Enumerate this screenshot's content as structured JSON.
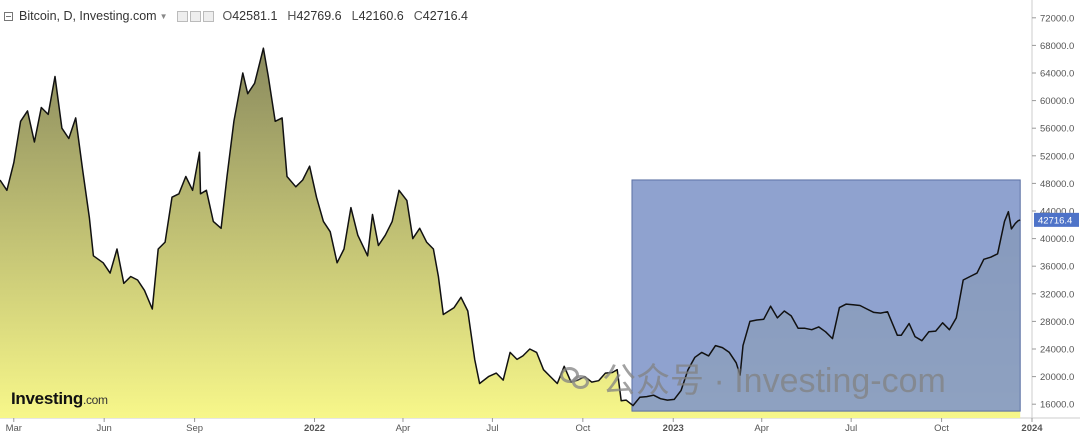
{
  "header": {
    "symbol": "Bitcoin, D, Investing.com",
    "open": "42581.1",
    "high": "42769.6",
    "low": "42160.6",
    "close": "42716.4",
    "open_label": "O",
    "high_label": "H",
    "low_label": "L",
    "close_label": "C"
  },
  "logo": {
    "brand": "Investing",
    "domain": ".com"
  },
  "watermark": "公众号 · Investing-com",
  "colors": {
    "line": "#111111",
    "fill_top": "#8a8a5e",
    "fill_bottom": "#f7f78a",
    "highlight": "#7f95c8",
    "price_tag": "#4e73c8",
    "grid": "#e6e6e6",
    "axis_text": "#555555"
  },
  "chart_data": {
    "type": "area",
    "title": "Bitcoin, D, Investing.com",
    "last_value": "42716.4",
    "y_ticks": [
      "16000.0",
      "20000.0",
      "24000.0",
      "28000.0",
      "32000.0",
      "36000.0",
      "40000.0",
      "44000.0",
      "48000.0",
      "52000.0",
      "56000.0",
      "60000.0",
      "64000.0",
      "68000.0",
      "72000.0"
    ],
    "ylim": [
      14000,
      74000
    ],
    "x_ticks": [
      {
        "label": "Mar",
        "date": "2021-03-01",
        "bold": false
      },
      {
        "label": "Jun",
        "date": "2021-06-01",
        "bold": false
      },
      {
        "label": "Sep",
        "date": "2021-09-01",
        "bold": false
      },
      {
        "label": "2022",
        "date": "2022-01-01",
        "bold": true
      },
      {
        "label": "Apr",
        "date": "2022-04-01",
        "bold": false
      },
      {
        "label": "Jul",
        "date": "2022-07-01",
        "bold": false
      },
      {
        "label": "Oct",
        "date": "2022-10-01",
        "bold": false
      },
      {
        "label": "2023",
        "date": "2023-01-01",
        "bold": true
      },
      {
        "label": "Apr",
        "date": "2023-04-01",
        "bold": false
      },
      {
        "label": "Jul",
        "date": "2023-07-01",
        "bold": false
      },
      {
        "label": "Oct",
        "date": "2023-10-01",
        "bold": false
      },
      {
        "label": "2024",
        "date": "2024-01-01",
        "bold": true
      }
    ],
    "xlim": [
      "2021-02-15",
      "2024-01-01"
    ],
    "highlight_range": {
      "x_start": "2022-11-20",
      "x_end": "2023-12-20",
      "y_top": 48500,
      "y_bottom": 15000
    },
    "series": [
      {
        "points": [
          [
            "2021-02-15",
            48500
          ],
          [
            "2021-02-22",
            47000
          ],
          [
            "2021-03-01",
            51000
          ],
          [
            "2021-03-08",
            57000
          ],
          [
            "2021-03-15",
            58500
          ],
          [
            "2021-03-22",
            54000
          ],
          [
            "2021-03-29",
            59000
          ],
          [
            "2021-04-05",
            58000
          ],
          [
            "2021-04-12",
            63500
          ],
          [
            "2021-04-19",
            56000
          ],
          [
            "2021-04-26",
            54500
          ],
          [
            "2021-05-03",
            57500
          ],
          [
            "2021-05-10",
            50000
          ],
          [
            "2021-05-17",
            43000
          ],
          [
            "2021-05-21",
            37500
          ],
          [
            "2021-05-31",
            36500
          ],
          [
            "2021-06-07",
            35000
          ],
          [
            "2021-06-14",
            38500
          ],
          [
            "2021-06-21",
            33500
          ],
          [
            "2021-06-28",
            34500
          ],
          [
            "2021-07-05",
            34000
          ],
          [
            "2021-07-12",
            32500
          ],
          [
            "2021-07-20",
            29800
          ],
          [
            "2021-07-26",
            38500
          ],
          [
            "2021-08-02",
            39500
          ],
          [
            "2021-08-09",
            46000
          ],
          [
            "2021-08-16",
            46500
          ],
          [
            "2021-08-23",
            49000
          ],
          [
            "2021-08-30",
            47000
          ],
          [
            "2021-09-06",
            52500
          ],
          [
            "2021-09-07",
            46500
          ],
          [
            "2021-09-13",
            47000
          ],
          [
            "2021-09-20",
            42500
          ],
          [
            "2021-09-28",
            41500
          ],
          [
            "2021-10-04",
            49000
          ],
          [
            "2021-10-11",
            57000
          ],
          [
            "2021-10-20",
            64000
          ],
          [
            "2021-10-25",
            61000
          ],
          [
            "2021-11-01",
            62500
          ],
          [
            "2021-11-10",
            67600
          ],
          [
            "2021-11-15",
            63500
          ],
          [
            "2021-11-22",
            57000
          ],
          [
            "2021-11-29",
            57500
          ],
          [
            "2021-12-04",
            49000
          ],
          [
            "2021-12-13",
            47500
          ],
          [
            "2021-12-20",
            48500
          ],
          [
            "2021-12-27",
            50500
          ],
          [
            "2022-01-03",
            46000
          ],
          [
            "2022-01-10",
            42500
          ],
          [
            "2022-01-17",
            41000
          ],
          [
            "2022-01-24",
            36500
          ],
          [
            "2022-01-31",
            38500
          ],
          [
            "2022-02-07",
            44500
          ],
          [
            "2022-02-14",
            40500
          ],
          [
            "2022-02-24",
            37500
          ],
          [
            "2022-03-01",
            43500
          ],
          [
            "2022-03-07",
            39000
          ],
          [
            "2022-03-14",
            40500
          ],
          [
            "2022-03-21",
            42500
          ],
          [
            "2022-03-28",
            47000
          ],
          [
            "2022-04-05",
            45500
          ],
          [
            "2022-04-11",
            40000
          ],
          [
            "2022-04-18",
            41500
          ],
          [
            "2022-04-25",
            39500
          ],
          [
            "2022-05-02",
            38500
          ],
          [
            "2022-05-07",
            34500
          ],
          [
            "2022-05-12",
            29000
          ],
          [
            "2022-05-23",
            30000
          ],
          [
            "2022-05-30",
            31500
          ],
          [
            "2022-06-06",
            29500
          ],
          [
            "2022-06-13",
            22500
          ],
          [
            "2022-06-18",
            19000
          ],
          [
            "2022-06-27",
            20000
          ],
          [
            "2022-07-05",
            20500
          ],
          [
            "2022-07-12",
            19500
          ],
          [
            "2022-07-19",
            23500
          ],
          [
            "2022-07-26",
            22500
          ],
          [
            "2022-08-01",
            23000
          ],
          [
            "2022-08-08",
            24000
          ],
          [
            "2022-08-15",
            23500
          ],
          [
            "2022-08-22",
            21000
          ],
          [
            "2022-08-29",
            20000
          ],
          [
            "2022-09-05",
            19000
          ],
          [
            "2022-09-12",
            21500
          ],
          [
            "2022-09-19",
            19200
          ],
          [
            "2022-09-26",
            19500
          ],
          [
            "2022-10-03",
            20000
          ],
          [
            "2022-10-10",
            19200
          ],
          [
            "2022-10-17",
            19400
          ],
          [
            "2022-10-24",
            20500
          ],
          [
            "2022-10-31",
            20600
          ],
          [
            "2022-11-05",
            21000
          ],
          [
            "2022-11-09",
            16500
          ],
          [
            "2022-11-14",
            16600
          ],
          [
            "2022-11-21",
            15800
          ],
          [
            "2022-11-28",
            17000
          ],
          [
            "2022-12-05",
            17100
          ],
          [
            "2022-12-12",
            17300
          ],
          [
            "2022-12-19",
            16800
          ],
          [
            "2022-12-26",
            16600
          ],
          [
            "2023-01-02",
            16700
          ],
          [
            "2023-01-09",
            18000
          ],
          [
            "2023-01-16",
            21000
          ],
          [
            "2023-01-23",
            22800
          ],
          [
            "2023-01-30",
            23500
          ],
          [
            "2023-02-06",
            23000
          ],
          [
            "2023-02-13",
            24500
          ],
          [
            "2023-02-20",
            24200
          ],
          [
            "2023-02-27",
            23500
          ],
          [
            "2023-03-06",
            22000
          ],
          [
            "2023-03-10",
            20200
          ],
          [
            "2023-03-13",
            24500
          ],
          [
            "2023-03-20",
            28000
          ],
          [
            "2023-03-27",
            28200
          ],
          [
            "2023-04-03",
            28300
          ],
          [
            "2023-04-10",
            30200
          ],
          [
            "2023-04-17",
            28500
          ],
          [
            "2023-04-24",
            29500
          ],
          [
            "2023-05-01",
            28800
          ],
          [
            "2023-05-08",
            27000
          ],
          [
            "2023-05-15",
            27000
          ],
          [
            "2023-05-22",
            26800
          ],
          [
            "2023-05-29",
            27200
          ],
          [
            "2023-06-05",
            26500
          ],
          [
            "2023-06-12",
            25500
          ],
          [
            "2023-06-19",
            30000
          ],
          [
            "2023-06-26",
            30500
          ],
          [
            "2023-07-03",
            30400
          ],
          [
            "2023-07-10",
            30300
          ],
          [
            "2023-07-17",
            29800
          ],
          [
            "2023-07-24",
            29300
          ],
          [
            "2023-07-31",
            29200
          ],
          [
            "2023-08-07",
            29400
          ],
          [
            "2023-08-17",
            26000
          ],
          [
            "2023-08-21",
            26000
          ],
          [
            "2023-08-29",
            27700
          ],
          [
            "2023-09-04",
            25800
          ],
          [
            "2023-09-11",
            25200
          ],
          [
            "2023-09-18",
            26500
          ],
          [
            "2023-09-25",
            26600
          ],
          [
            "2023-10-02",
            27800
          ],
          [
            "2023-10-09",
            26800
          ],
          [
            "2023-10-16",
            28500
          ],
          [
            "2023-10-23",
            34000
          ],
          [
            "2023-10-30",
            34500
          ],
          [
            "2023-11-06",
            35000
          ],
          [
            "2023-11-13",
            37000
          ],
          [
            "2023-11-20",
            37300
          ],
          [
            "2023-11-27",
            37800
          ],
          [
            "2023-12-04",
            42500
          ],
          [
            "2023-12-08",
            43900
          ],
          [
            "2023-12-11",
            41400
          ],
          [
            "2023-12-15",
            42200
          ],
          [
            "2023-12-18",
            42600
          ],
          [
            "2023-12-20",
            42716
          ]
        ]
      }
    ]
  }
}
